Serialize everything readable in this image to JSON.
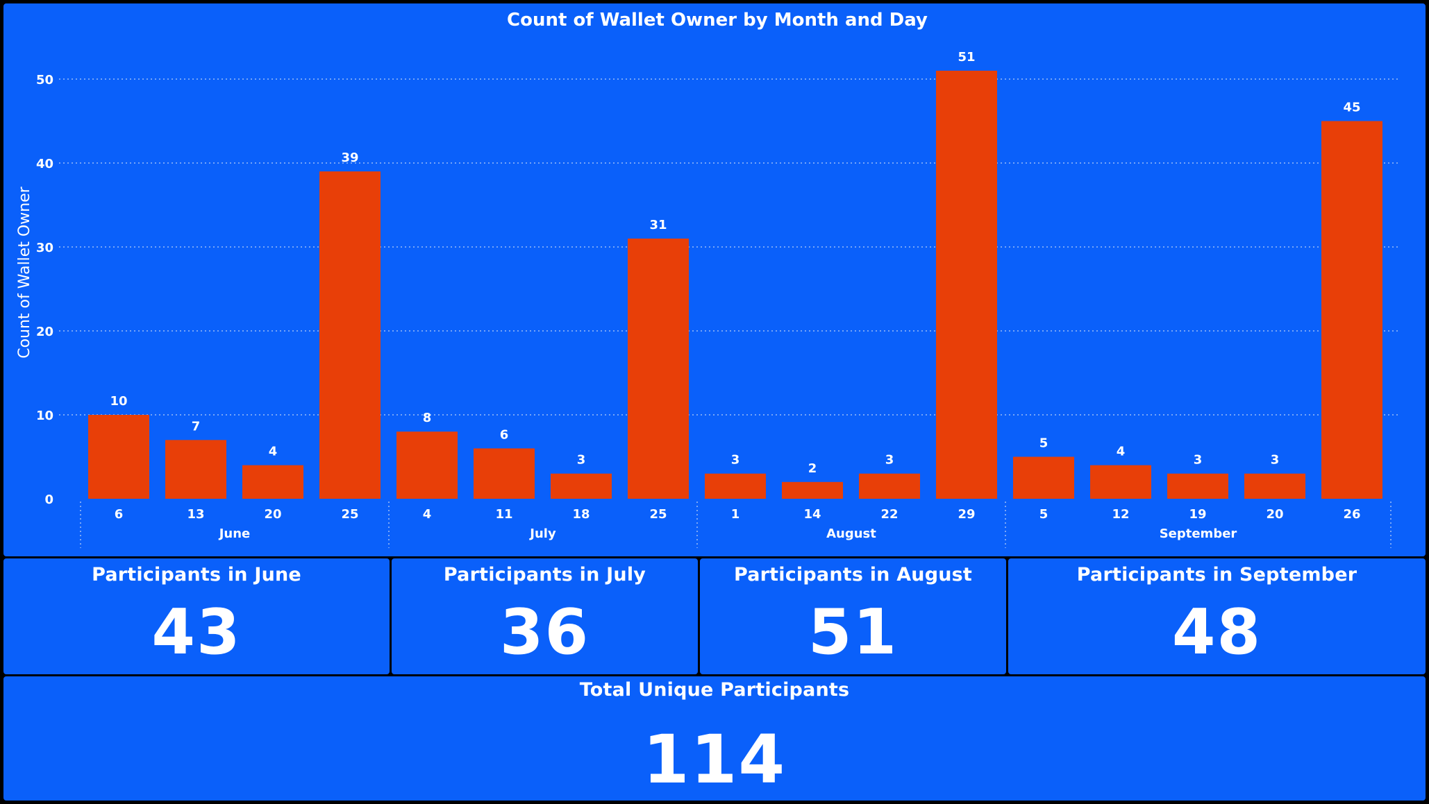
{
  "chart_data": {
    "type": "bar",
    "title": "Count of Wallet Owner by Month and Day",
    "ylabel": "Count of Wallet Owner",
    "xlabel": "",
    "ylim": [
      0,
      55
    ],
    "yticks": [
      0,
      10,
      20,
      30,
      40,
      50
    ],
    "grid": true,
    "bar_color": "#e83f08",
    "groups": [
      {
        "month": "June",
        "days": [
          "6",
          "13",
          "20",
          "25"
        ],
        "values": [
          10,
          7,
          4,
          39
        ]
      },
      {
        "month": "July",
        "days": [
          "4",
          "11",
          "18",
          "25"
        ],
        "values": [
          8,
          6,
          3,
          31
        ]
      },
      {
        "month": "August",
        "days": [
          "1",
          "14",
          "22",
          "29"
        ],
        "values": [
          3,
          2,
          3,
          51
        ]
      },
      {
        "month": "September",
        "days": [
          "5",
          "12",
          "19",
          "20",
          "26"
        ],
        "values": [
          5,
          4,
          3,
          3,
          45
        ]
      }
    ]
  },
  "cards": {
    "june": {
      "label": "Participants in June",
      "value": "43"
    },
    "july": {
      "label": "Participants in July",
      "value": "36"
    },
    "august": {
      "label": "Participants in August",
      "value": "51"
    },
    "september": {
      "label": "Participants in September",
      "value": "48"
    },
    "total": {
      "label": "Total Unique Participants",
      "value": "114"
    }
  },
  "colors": {
    "background": "#0a60fa",
    "bar": "#e83f08",
    "text": "#ffffff"
  }
}
